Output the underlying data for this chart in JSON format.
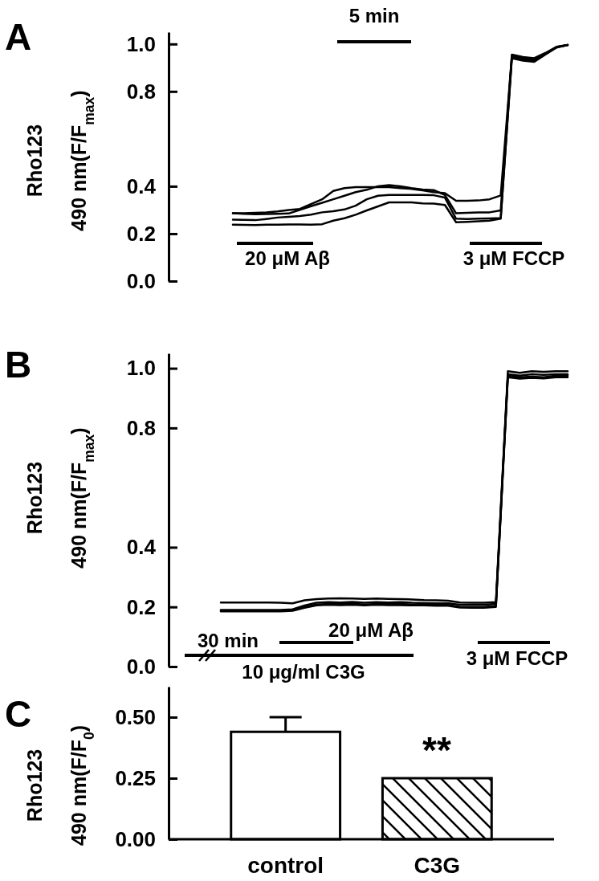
{
  "chart_data": [
    {
      "type": "line",
      "title": "A",
      "ylabel": "Rho123\n490 nm(F/F$_{max}$)",
      "tick_labels": "y",
      "categories": [
        null,
        null,
        null,
        null,
        null,
        null,
        null,
        null,
        null,
        null,
        null,
        null,
        null,
        null,
        null,
        null,
        null,
        null,
        null,
        null,
        null,
        null,
        null,
        null,
        null,
        null,
        null,
        null,
        null,
        null,
        null
      ],
      "series": [
        {
          "color": "#000000",
          "values": [
            0.286,
            0.286,
            0.288,
            0.29,
            0.294,
            0.3,
            0.304,
            0.325,
            0.345,
            0.38,
            0.392,
            0.396,
            0.396,
            0.396,
            0.396,
            0.392,
            0.389,
            0.383,
            0.375,
            0.371,
            0.339,
            0.339,
            0.34,
            0.345,
            0.361,
            0.95,
            0.94,
            0.935,
            0.96,
            0.987,
            0.996
          ]
        },
        {
          "color": "#000000",
          "values": [
            0.286,
            0.284,
            0.282,
            0.283,
            0.284,
            0.285,
            0.3,
            0.316,
            0.33,
            0.345,
            0.36,
            0.375,
            0.385,
            0.4,
            0.405,
            0.4,
            0.392,
            0.386,
            0.384,
            0.363,
            0.286,
            0.288,
            0.29,
            0.29,
            0.298,
            0.955,
            0.945,
            0.94,
            0.962,
            0.988,
            0.996
          ]
        },
        {
          "color": "#000000",
          "values": [
            0.259,
            0.258,
            0.257,
            0.262,
            0.268,
            0.271,
            0.274,
            0.28,
            0.29,
            0.295,
            0.302,
            0.318,
            0.345,
            0.36,
            0.363,
            0.363,
            0.363,
            0.363,
            0.362,
            0.352,
            0.263,
            0.262,
            0.263,
            0.264,
            0.266,
            0.945,
            0.935,
            0.93,
            0.958,
            0.986,
            0.996
          ]
        },
        {
          "color": "#000000",
          "values": [
            0.238,
            0.237,
            0.236,
            0.238,
            0.238,
            0.239,
            0.239,
            0.238,
            0.24,
            0.255,
            0.265,
            0.28,
            0.298,
            0.315,
            0.332,
            0.332,
            0.332,
            0.328,
            0.327,
            0.321,
            0.248,
            0.25,
            0.252,
            0.255,
            0.263,
            0.94,
            0.93,
            0.925,
            0.955,
            0.985,
            0.996
          ]
        }
      ],
      "ylim": [
        0,
        1.05
      ],
      "yticks": [
        {
          "value": 0,
          "label": "0.0"
        },
        {
          "value": 0.2,
          "label": "0.2"
        },
        {
          "value": 0.4,
          "label": "0.4"
        },
        {
          "value": 0.8,
          "label": "0.8"
        },
        {
          "value": 1,
          "label": "1.0"
        }
      ],
      "annotations": [
        "5 min",
        "20 μM Aβ",
        "3 μM FCCP"
      ]
    },
    {
      "type": "line",
      "title": "B",
      "ylabel": "Rho123\n490 nm(F/F$_{max}$)",
      "tick_labels": "y",
      "categories": [
        null,
        null,
        null,
        null,
        null,
        null,
        null,
        null,
        null,
        null,
        null,
        null,
        null,
        null,
        null,
        null,
        null,
        null,
        null,
        null,
        null,
        null,
        null,
        null,
        null,
        null,
        null,
        null,
        null,
        null
      ],
      "series": [
        {
          "color": "#000000",
          "values": [
            0.215,
            0.215,
            0.215,
            0.215,
            0.215,
            0.214,
            0.212,
            0.222,
            0.226,
            0.228,
            0.229,
            0.228,
            0.227,
            0.228,
            0.227,
            0.226,
            0.225,
            0.223,
            0.222,
            0.221,
            0.215,
            0.214,
            0.214,
            0.216,
            0.99,
            0.985,
            0.99,
            0.988,
            0.99,
            0.99
          ]
        },
        {
          "color": "#000000",
          "values": [
            0.19,
            0.19,
            0.19,
            0.19,
            0.19,
            0.19,
            0.192,
            0.205,
            0.214,
            0.216,
            0.215,
            0.217,
            0.214,
            0.216,
            0.215,
            0.216,
            0.214,
            0.213,
            0.212,
            0.212,
            0.207,
            0.207,
            0.207,
            0.21,
            0.98,
            0.975,
            0.98,
            0.978,
            0.98,
            0.98
          ]
        },
        {
          "color": "#000000",
          "values": [
            0.188,
            0.188,
            0.188,
            0.188,
            0.188,
            0.188,
            0.19,
            0.2,
            0.208,
            0.21,
            0.209,
            0.211,
            0.208,
            0.21,
            0.209,
            0.21,
            0.208,
            0.208,
            0.207,
            0.207,
            0.2,
            0.2,
            0.2,
            0.203,
            0.975,
            0.97,
            0.972,
            0.97,
            0.975,
            0.975
          ]
        },
        {
          "color": "#000000",
          "values": [
            0.185,
            0.185,
            0.185,
            0.185,
            0.185,
            0.185,
            0.187,
            0.197,
            0.205,
            0.207,
            0.206,
            0.207,
            0.205,
            0.207,
            0.206,
            0.206,
            0.205,
            0.205,
            0.204,
            0.204,
            0.198,
            0.197,
            0.197,
            0.2,
            0.97,
            0.965,
            0.968,
            0.966,
            0.97,
            0.97
          ]
        }
      ],
      "ylim": [
        0,
        1.05
      ],
      "yticks": [
        {
          "value": 0,
          "label": "0.0"
        },
        {
          "value": 0.2,
          "label": "0.2"
        },
        {
          "value": 0.4,
          "label": "0.4"
        },
        {
          "value": 0.8,
          "label": "0.8"
        },
        {
          "value": 1,
          "label": "1.0"
        }
      ],
      "annotations": [
        "30 min",
        "20 μM Aβ",
        "10 μg/ml C3G",
        "3 μM FCCP"
      ]
    },
    {
      "type": "bar",
      "title": "C",
      "ylabel": "Rho123\n490 nm(F/F$_{0}$)",
      "categories": [
        "control",
        "C3G"
      ],
      "values": [
        0.44,
        0.25
      ],
      "colors": [
        "#ffffff",
        "#000000"
      ],
      "errors": [
        [
          0.44,
          0.5
        ],
        null
      ],
      "ylim": [
        0,
        0.625
      ],
      "yticks": [
        {
          "value": 0,
          "label": "0.00"
        },
        {
          "value": 0.25,
          "label": "0.25"
        },
        {
          "value": 0.5,
          "label": "0.50"
        }
      ],
      "annotations": [
        "**"
      ]
    }
  ]
}
